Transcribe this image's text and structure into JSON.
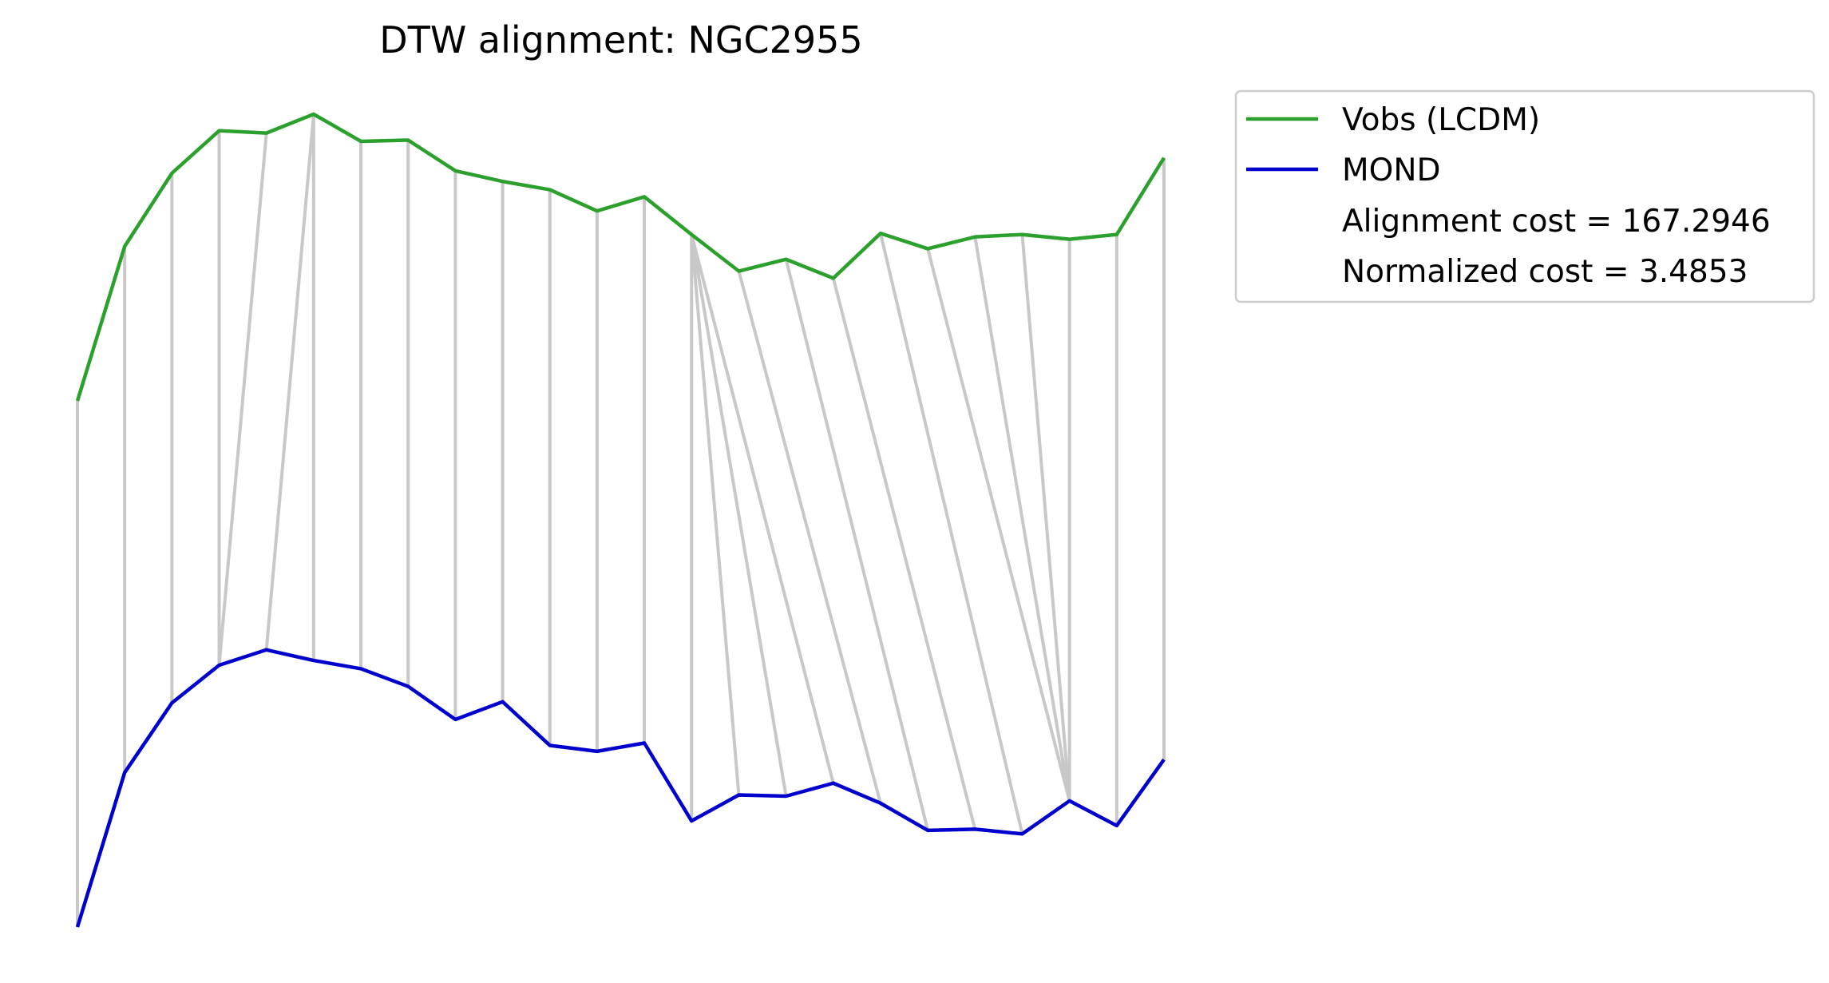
{
  "chart_data": {
    "type": "line",
    "title": "DTW alignment: NGC2955",
    "xlabel": "",
    "ylabel": "",
    "axes_visible": false,
    "grid": false,
    "legend_position": "outside-top-right",
    "x": [
      0,
      1,
      2,
      3,
      4,
      5,
      6,
      7,
      8,
      9,
      10,
      11,
      12,
      13,
      14,
      15,
      16,
      17,
      18,
      19,
      20,
      21,
      22,
      23
    ],
    "series": [
      {
        "name": "Vobs (LCDM)",
        "color": "#2ca02c",
        "values": [
          7.04,
          8.35,
          8.97,
          9.33,
          9.31,
          9.47,
          9.24,
          9.25,
          8.99,
          8.9,
          8.83,
          8.65,
          8.77,
          8.45,
          8.14,
          8.24,
          8.08,
          8.46,
          8.33,
          8.43,
          8.45,
          8.41,
          8.45,
          9.1
        ]
      },
      {
        "name": "MOND",
        "color": "#0000cc",
        "values": [
          2.58,
          3.89,
          4.48,
          4.8,
          4.93,
          4.84,
          4.77,
          4.62,
          4.34,
          4.49,
          4.12,
          4.07,
          4.14,
          3.48,
          3.7,
          3.69,
          3.8,
          3.63,
          3.4,
          3.41,
          3.37,
          3.65,
          3.44,
          4.0
        ]
      }
    ],
    "alignment_path": [
      [
        0,
        0
      ],
      [
        1,
        1
      ],
      [
        2,
        2
      ],
      [
        3,
        3
      ],
      [
        4,
        3
      ],
      [
        5,
        4
      ],
      [
        5,
        5
      ],
      [
        6,
        6
      ],
      [
        7,
        7
      ],
      [
        8,
        8
      ],
      [
        9,
        9
      ],
      [
        10,
        10
      ],
      [
        11,
        11
      ],
      [
        12,
        12
      ],
      [
        13,
        13
      ],
      [
        13,
        14
      ],
      [
        13,
        15
      ],
      [
        13,
        16
      ],
      [
        14,
        17
      ],
      [
        15,
        18
      ],
      [
        16,
        19
      ],
      [
        17,
        20
      ],
      [
        18,
        21
      ],
      [
        19,
        21
      ],
      [
        20,
        21
      ],
      [
        21,
        21
      ],
      [
        22,
        22
      ],
      [
        23,
        23
      ]
    ],
    "alignment_color": "#c8c8c8",
    "annotations": [
      "Alignment cost = 167.2946",
      "Normalized cost = 3.4853"
    ]
  }
}
